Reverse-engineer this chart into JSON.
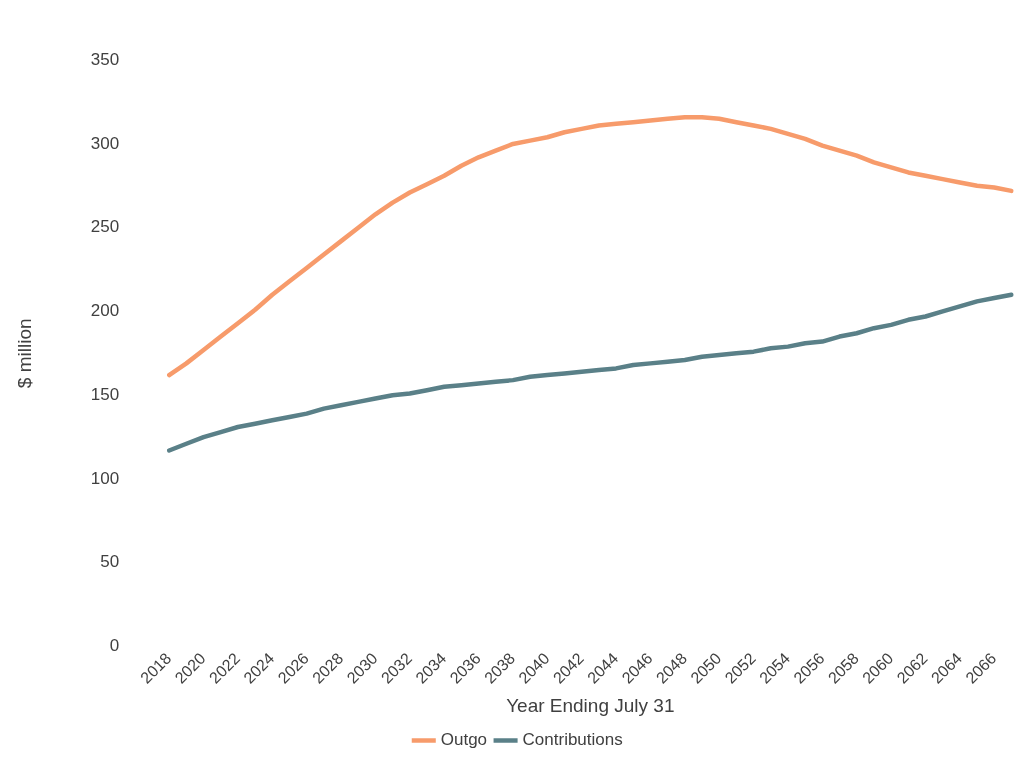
{
  "chart_data": {
    "type": "line",
    "xlabel": "Year Ending July 31",
    "ylabel": "$ million",
    "categories": [
      "2018",
      null,
      "2020",
      null,
      "2022",
      null,
      "2024",
      null,
      "2026",
      null,
      "2028",
      null,
      "2030",
      null,
      "2032",
      null,
      "2034",
      null,
      "2036",
      null,
      "2038",
      null,
      "2040",
      null,
      "2042",
      null,
      "2044",
      null,
      "2046",
      null,
      "2048",
      null,
      "2050",
      null,
      "2052",
      null,
      "2054",
      null,
      "2056",
      null,
      "2058",
      null,
      "2060",
      null,
      "2062",
      null,
      "2064",
      null,
      "2066",
      null
    ],
    "series": [
      {
        "name": "Outgo",
        "color": "#f79b6b",
        "values": [
          162,
          169,
          177,
          185,
          193,
          201,
          210,
          218,
          226,
          234,
          242,
          250,
          258,
          265,
          271,
          276,
          281,
          287,
          292,
          296,
          300,
          302,
          304,
          307,
          309,
          311,
          312,
          313,
          314,
          315,
          316,
          316,
          315,
          313,
          311,
          309,
          306,
          303,
          299,
          296,
          293,
          289,
          286,
          283,
          281,
          279,
          277,
          275,
          274,
          272
        ]
      },
      {
        "name": "Contributions",
        "color": "#5a8088",
        "values": [
          117,
          121,
          125,
          128,
          131,
          133,
          135,
          137,
          139,
          142,
          144,
          146,
          148,
          150,
          151,
          153,
          155,
          156,
          157,
          158,
          159,
          161,
          162,
          163,
          164,
          165,
          166,
          168,
          169,
          170,
          171,
          173,
          174,
          175,
          176,
          178,
          179,
          181,
          182,
          185,
          187,
          190,
          192,
          195,
          197,
          200,
          203,
          206,
          208,
          210
        ]
      }
    ],
    "ylim": [
      0,
      350
    ],
    "yticks": [
      0,
      50,
      100,
      150,
      200,
      250,
      300,
      350
    ],
    "grid": false,
    "legend": "bottom",
    "marker": "none",
    "line_style": "solid"
  }
}
